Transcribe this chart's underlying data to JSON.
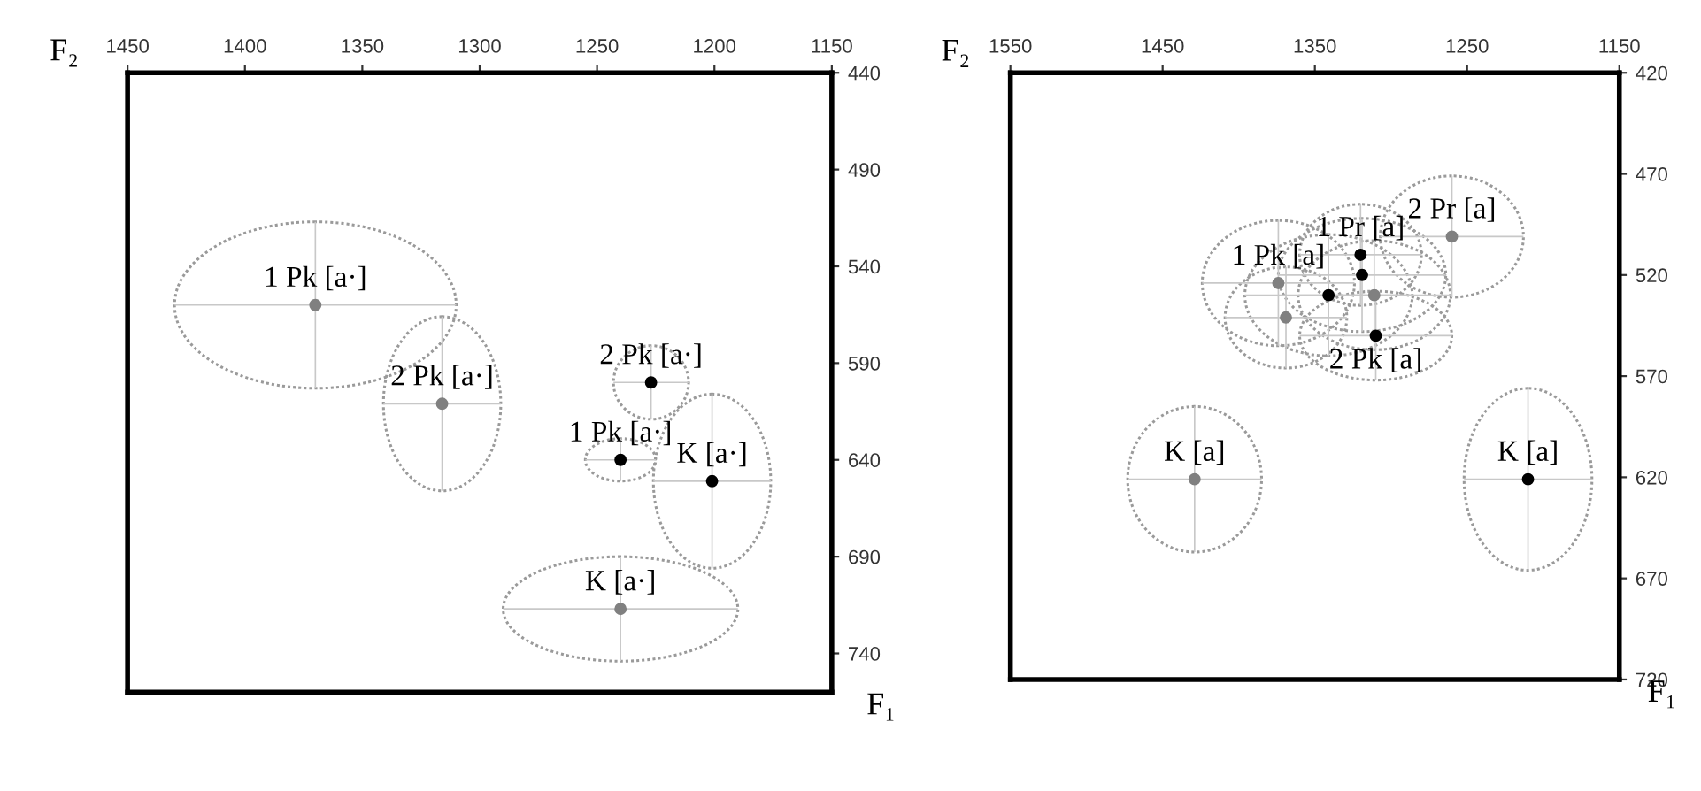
{
  "chart_data": [
    {
      "type": "scatter",
      "xlabel": "F₂",
      "ylabel": "F₁",
      "xlim": [
        1450,
        1150
      ],
      "ylim": [
        760,
        440
      ],
      "xticks": [
        1450,
        1400,
        1350,
        1300,
        1250,
        1200,
        1150
      ],
      "yticks": [
        440,
        490,
        540,
        590,
        640,
        690,
        740
      ],
      "marker": "circle",
      "grid": false,
      "legend": false,
      "series": [
        {
          "name": "1 Pk [a·]",
          "color": "#808080",
          "x": [
            1370
          ],
          "values": [
            560
          ],
          "xerrors": [
            60
          ],
          "errors": [
            43
          ]
        },
        {
          "name": "2 Pk [a·]",
          "color": "#808080",
          "x": [
            1316
          ],
          "values": [
            611
          ],
          "xerrors": [
            25
          ],
          "errors": [
            45
          ]
        },
        {
          "name": "K [a·]",
          "color": "#808080",
          "x": [
            1240
          ],
          "values": [
            717
          ],
          "xerrors": [
            50
          ],
          "errors": [
            27
          ]
        },
        {
          "name": "2 Pk [a·]",
          "color": "#000000",
          "x": [
            1227
          ],
          "values": [
            600
          ],
          "xerrors": [
            16
          ],
          "errors": [
            19
          ]
        },
        {
          "name": "1 Pk [a·]",
          "color": "#000000",
          "x": [
            1240
          ],
          "values": [
            640
          ],
          "xerrors": [
            15
          ],
          "errors": [
            11
          ]
        },
        {
          "name": "K [a·]",
          "color": "#000000",
          "x": [
            1201
          ],
          "values": [
            651
          ],
          "xerrors": [
            25
          ],
          "errors": [
            45
          ]
        }
      ]
    },
    {
      "type": "scatter",
      "xlabel": "F₂",
      "ylabel": "F₁",
      "xlim": [
        1550,
        1150
      ],
      "ylim": [
        720,
        420
      ],
      "xticks": [
        1550,
        1450,
        1350,
        1250,
        1150
      ],
      "yticks": [
        420,
        470,
        520,
        570,
        620,
        670,
        720
      ],
      "marker": "circle",
      "grid": false,
      "legend": false,
      "series": [
        {
          "name": "2 Pr [a]",
          "color": "#808080",
          "x": [
            1260
          ],
          "values": [
            501
          ],
          "xerrors": [
            47
          ],
          "errors": [
            30
          ]
        },
        {
          "name": "1 Pk [a]",
          "color": "#808080",
          "x": [
            1374
          ],
          "values": [
            524
          ],
          "xerrors": [
            50
          ],
          "errors": [
            31
          ]
        },
        {
          "name": "K [a]",
          "color": "#808080",
          "x": [
            1429
          ],
          "values": [
            621
          ],
          "xerrors": [
            44
          ],
          "errors": [
            36
          ]
        },
        {
          "color": "#808080",
          "x": [
            1369,
            1311
          ],
          "values": [
            541,
            530
          ],
          "xerrors": [
            40,
            50
          ],
          "errors": [
            25,
            27
          ]
        },
        {
          "name": "1 Pr [a]",
          "color": "#000000",
          "x": [
            1320
          ],
          "values": [
            510
          ],
          "xerrors": [
            40
          ],
          "errors": [
            25
          ]
        },
        {
          "name": "2 Pk [a]",
          "color": "#000000",
          "x": [
            1310
          ],
          "values": [
            550
          ],
          "xerrors": [
            50
          ],
          "errors": [
            22
          ]
        },
        {
          "name": "K [a]",
          "color": "#000000",
          "x": [
            1210
          ],
          "values": [
            621
          ],
          "xerrors": [
            42
          ],
          "errors": [
            45
          ]
        },
        {
          "color": "#000000",
          "x": [
            1319,
            1341
          ],
          "values": [
            520,
            530
          ],
          "xerrors": [
            55,
            55
          ],
          "errors": [
            28,
            30
          ]
        }
      ]
    }
  ]
}
